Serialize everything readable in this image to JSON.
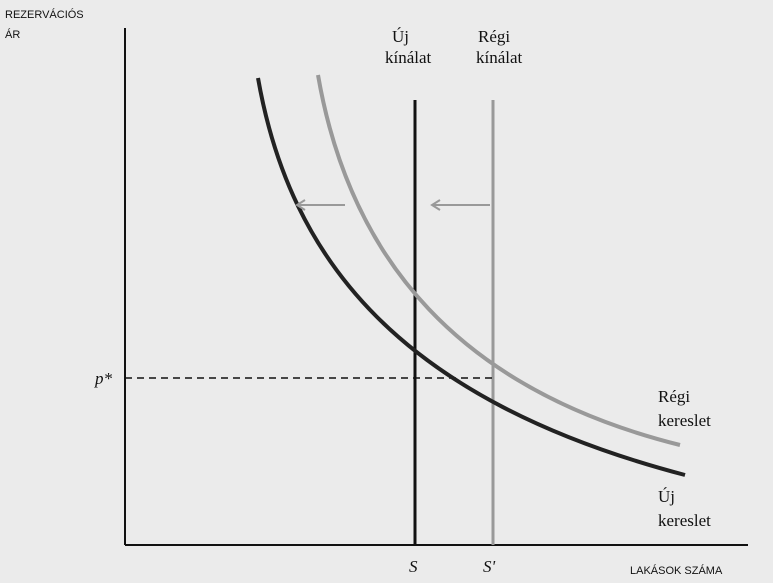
{
  "axes": {
    "y_label": [
      "REZERVÁCIÓS",
      "ÁR"
    ],
    "x_label": "LAKÁSOK SZÁMA"
  },
  "supply": {
    "new": [
      "Új",
      "kínálat"
    ],
    "old": [
      "Régi",
      "kínálat"
    ]
  },
  "price_label": "p*",
  "demand": {
    "old": [
      "Régi",
      "kereslet"
    ],
    "new": [
      "Új",
      "kereslet"
    ]
  },
  "quantity_labels": {
    "new": "S",
    "old": "S'"
  }
}
